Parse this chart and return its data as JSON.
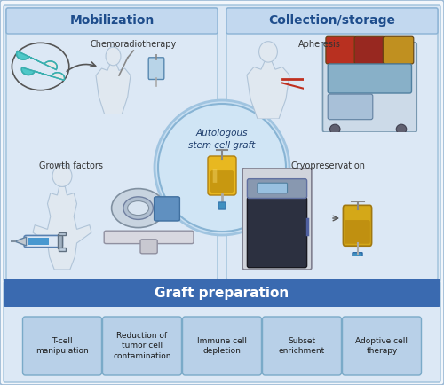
{
  "fig_width": 5.0,
  "fig_height": 4.34,
  "dpi": 100,
  "bg_outer": "#f2f6fb",
  "bg_top": "#dce8f5",
  "bg_bottom": "#dce8f5",
  "left_box_bg": "#dce8f5",
  "right_box_bg": "#dce8f5",
  "title_bar_bg": "#3a6ab0",
  "title_bar_text": "#ffffff",
  "box_header_bg": "#c2d8ef",
  "box_header_border": "#8ab2d4",
  "box_border": "#9ec0da",
  "left_title": "Mobilization",
  "right_title": "Collection/storage",
  "label_chemo": "Chemoradiotherapy",
  "label_growth": "Growth factors",
  "label_apheresis": "Apheresis",
  "label_cryo": "Cryopreservation",
  "circle_bg": "#c8dcf0",
  "circle_border": "#88b4d4",
  "center_text": "Autologous\nstem cell graft",
  "bottom_title": "Graft preparation",
  "graft_boxes": [
    "T-cell\nmanipulation",
    "Reduction of\ntumor cell\ncontamination",
    "Immune cell\ndepletion",
    "Subset\nenrichment",
    "Adoptive cell\ntherapy"
  ],
  "graft_box_bg": "#b8d0e8",
  "graft_box_border": "#7aaac8"
}
